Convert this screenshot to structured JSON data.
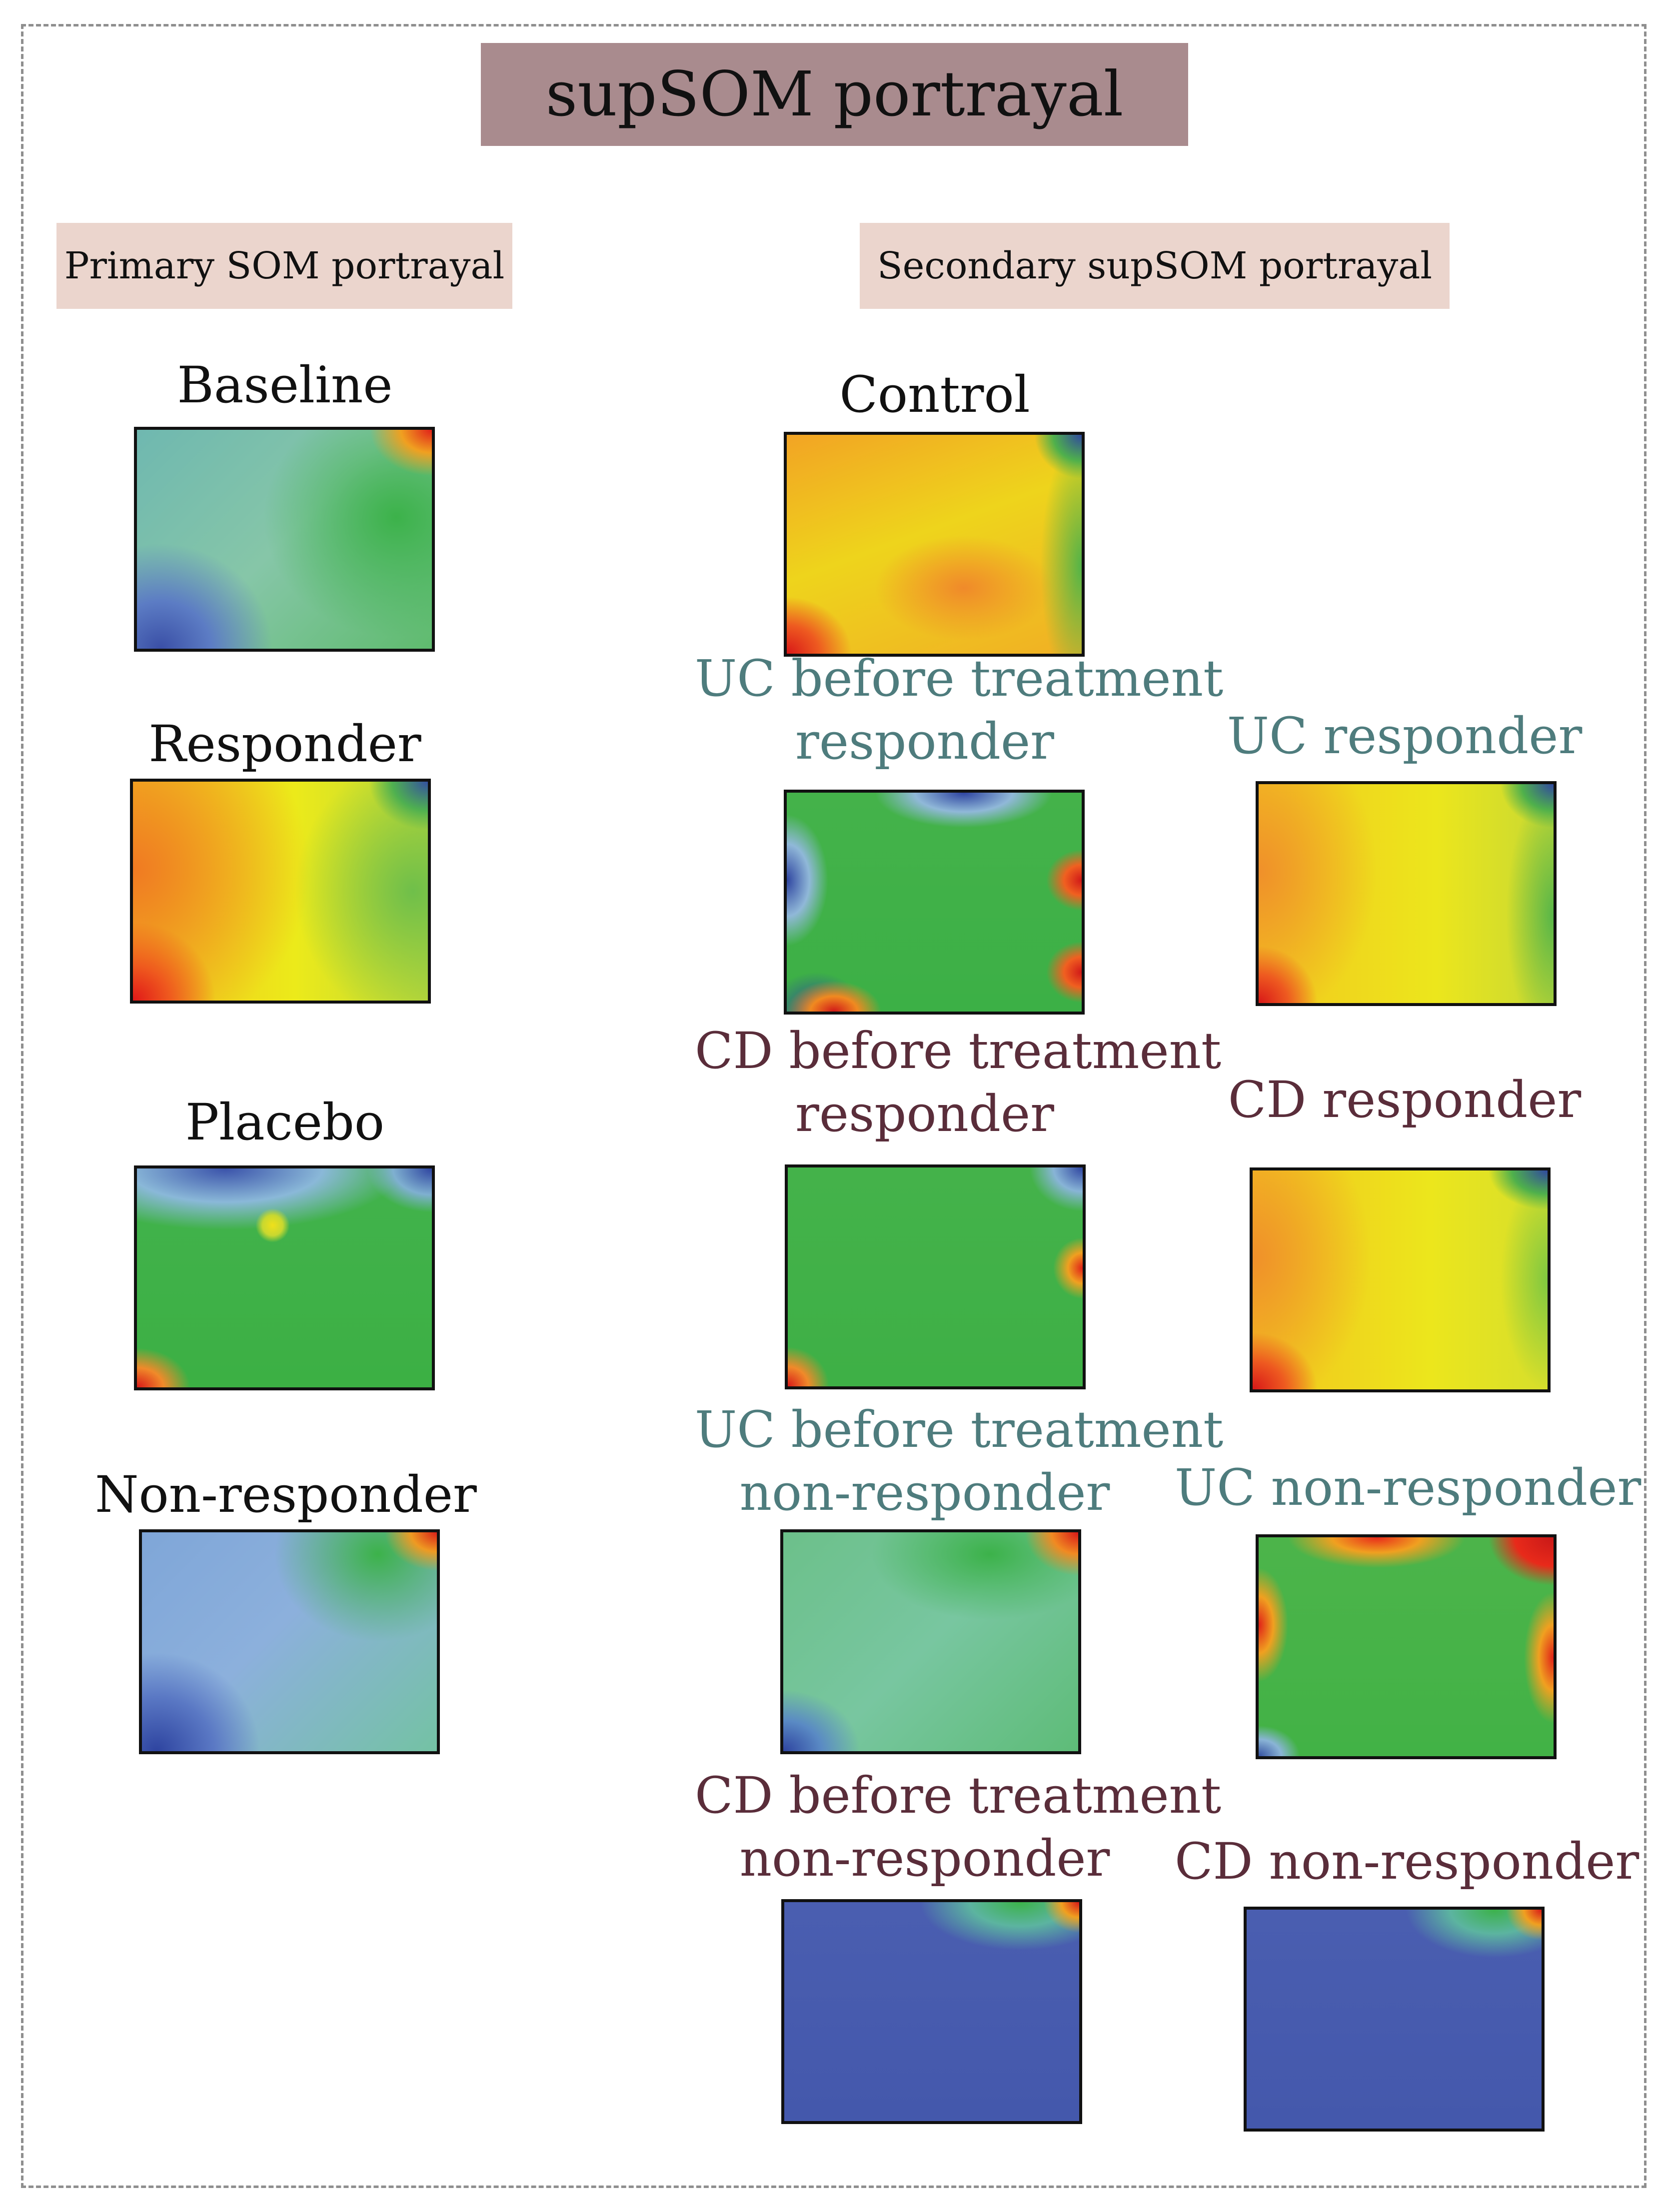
{
  "title": "supSOM portrayal",
  "sections": {
    "primary": "Primary SOM portrayal",
    "secondary": "Secondary supSOM portrayal"
  },
  "primary_maps": [
    {
      "label": "Baseline",
      "palette": "green-blue"
    },
    {
      "label": "Responder",
      "palette": "red-yellow"
    },
    {
      "label": "Placebo",
      "palette": "green"
    },
    {
      "label": "Non-responder",
      "palette": "blue-green"
    }
  ],
  "secondary_maps": {
    "control": {
      "label": "Control",
      "palette": "yellow-red"
    },
    "uc_before_responder": {
      "line1": "UC before treatment",
      "line2": "responder",
      "palette": "green-red-spots"
    },
    "uc_responder": {
      "label": "UC responder",
      "palette": "yellow-red"
    },
    "cd_before_responder": {
      "line1": "CD before treatment",
      "line2": "responder",
      "palette": "green"
    },
    "cd_responder": {
      "label": "CD responder",
      "palette": "yellow-red"
    },
    "uc_before_nonresponder": {
      "line1": "UC before treatment",
      "line2": "non-responder",
      "palette": "green-light"
    },
    "uc_nonresponder": {
      "label": "UC non-responder",
      "palette": "green-red-border"
    },
    "cd_before_nonresponder": {
      "line1": "CD before treatment",
      "line2": "non-responder",
      "palette": "blue"
    },
    "cd_nonresponder": {
      "label": "CD non-responder",
      "palette": "blue"
    }
  },
  "colors": {
    "uc_label": "#4e7c7d",
    "cd_label": "#5a2d3a",
    "title_bg": "#a98b8e",
    "section_bg": "#ebd5cd"
  }
}
